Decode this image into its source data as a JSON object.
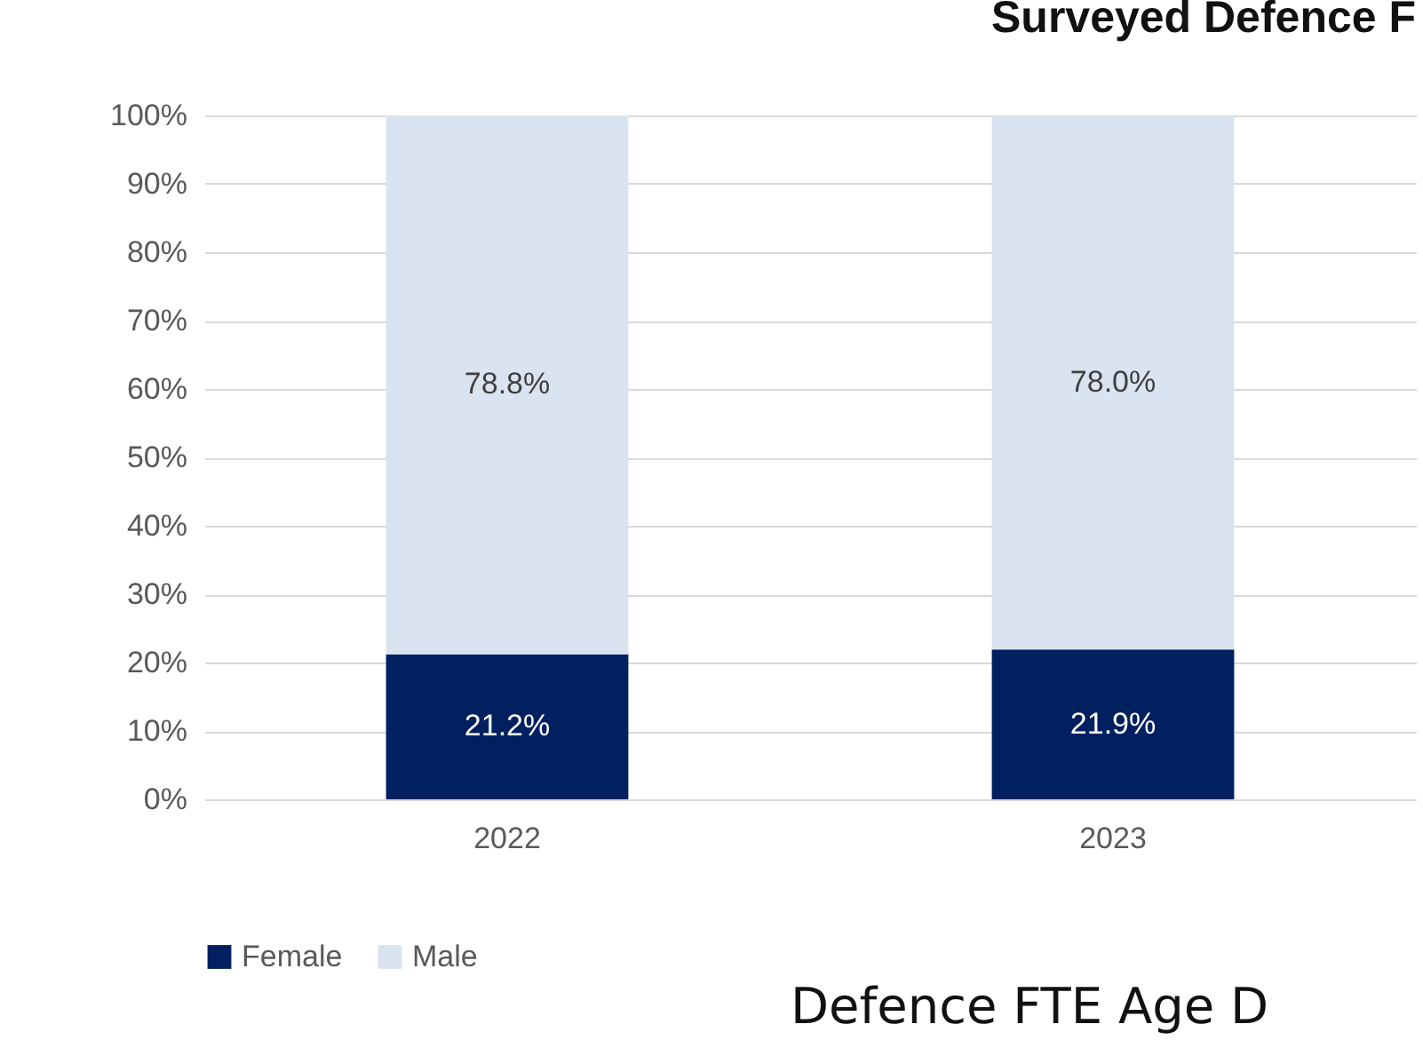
{
  "chart_data": {
    "type": "bar",
    "title": "Surveyed Defence F",
    "categories": [
      "2022",
      "2023"
    ],
    "stacked": true,
    "series": [
      {
        "name": "Female",
        "color": "#002060",
        "values": [
          21.2,
          21.9
        ],
        "value_labels": [
          "21.2%",
          "21.9%"
        ]
      },
      {
        "name": "Male",
        "color": "#dae3f0",
        "values": [
          78.8,
          78.0
        ],
        "value_labels": [
          "78.8%",
          "78.0%"
        ]
      }
    ],
    "ylim": [
      0,
      100
    ],
    "yticks": [
      {
        "value": 0,
        "label": "0%"
      },
      {
        "value": 10,
        "label": "10%"
      },
      {
        "value": 20,
        "label": "20%"
      },
      {
        "value": 30,
        "label": "30%"
      },
      {
        "value": 40,
        "label": "40%"
      },
      {
        "value": 50,
        "label": "50%"
      },
      {
        "value": 60,
        "label": "60%"
      },
      {
        "value": 70,
        "label": "70%"
      },
      {
        "value": 80,
        "label": "80%"
      },
      {
        "value": 90,
        "label": "90%"
      },
      {
        "value": 100,
        "label": "100%"
      }
    ],
    "grid": "y",
    "legend": "bottom",
    "annotations": [
      "Defence FTE Age D"
    ]
  }
}
